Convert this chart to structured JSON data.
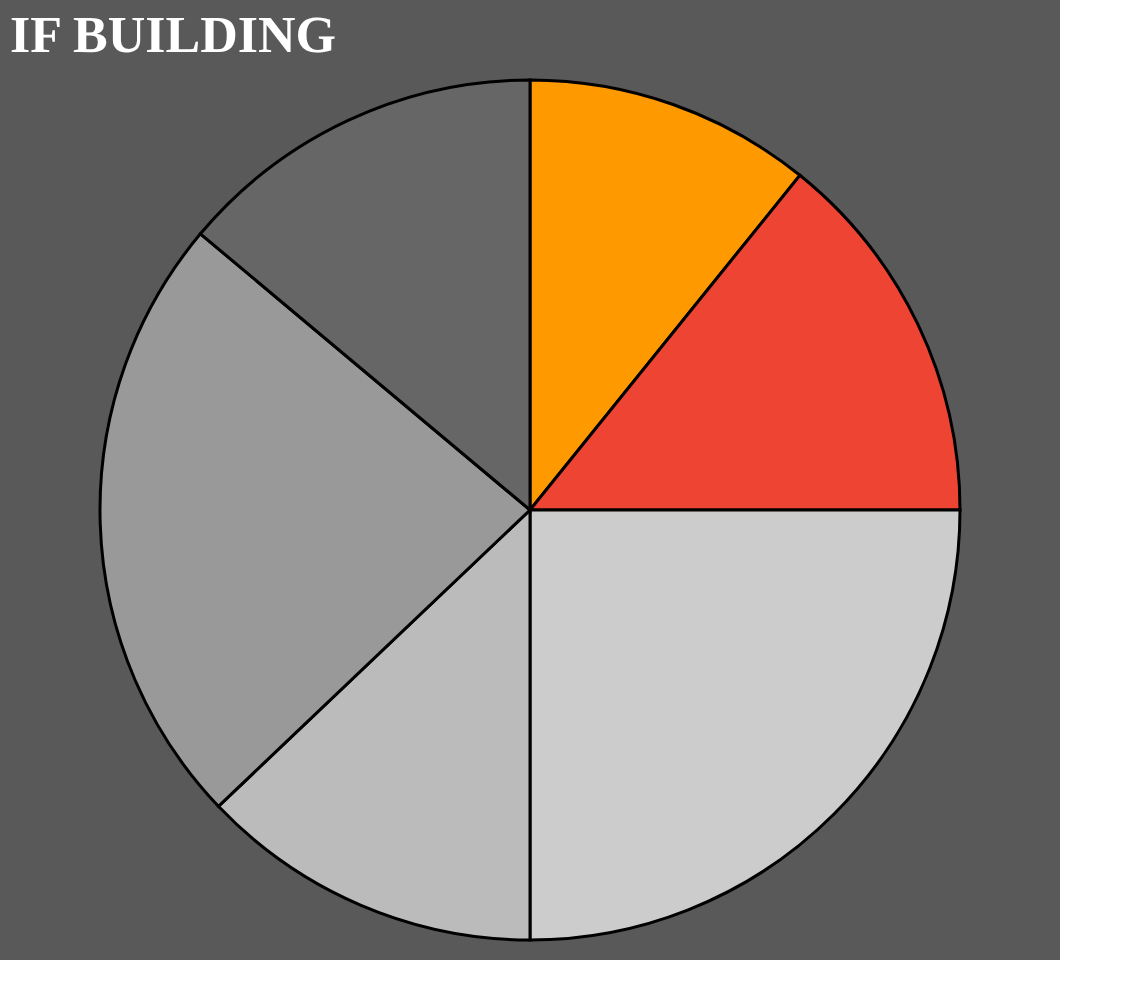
{
  "chart_data": {
    "type": "pie",
    "title": "IF BUILDING",
    "categories": [
      null,
      null,
      null,
      null,
      null,
      null
    ],
    "values": [
      10.8,
      14.2,
      25.0,
      12.9,
      23.2,
      13.9
    ],
    "colors": [
      "#ff9900",
      "#ee4433",
      "#cccccc",
      "#bbbbbb",
      "#999999",
      "#666666"
    ],
    "legend": false
  }
}
